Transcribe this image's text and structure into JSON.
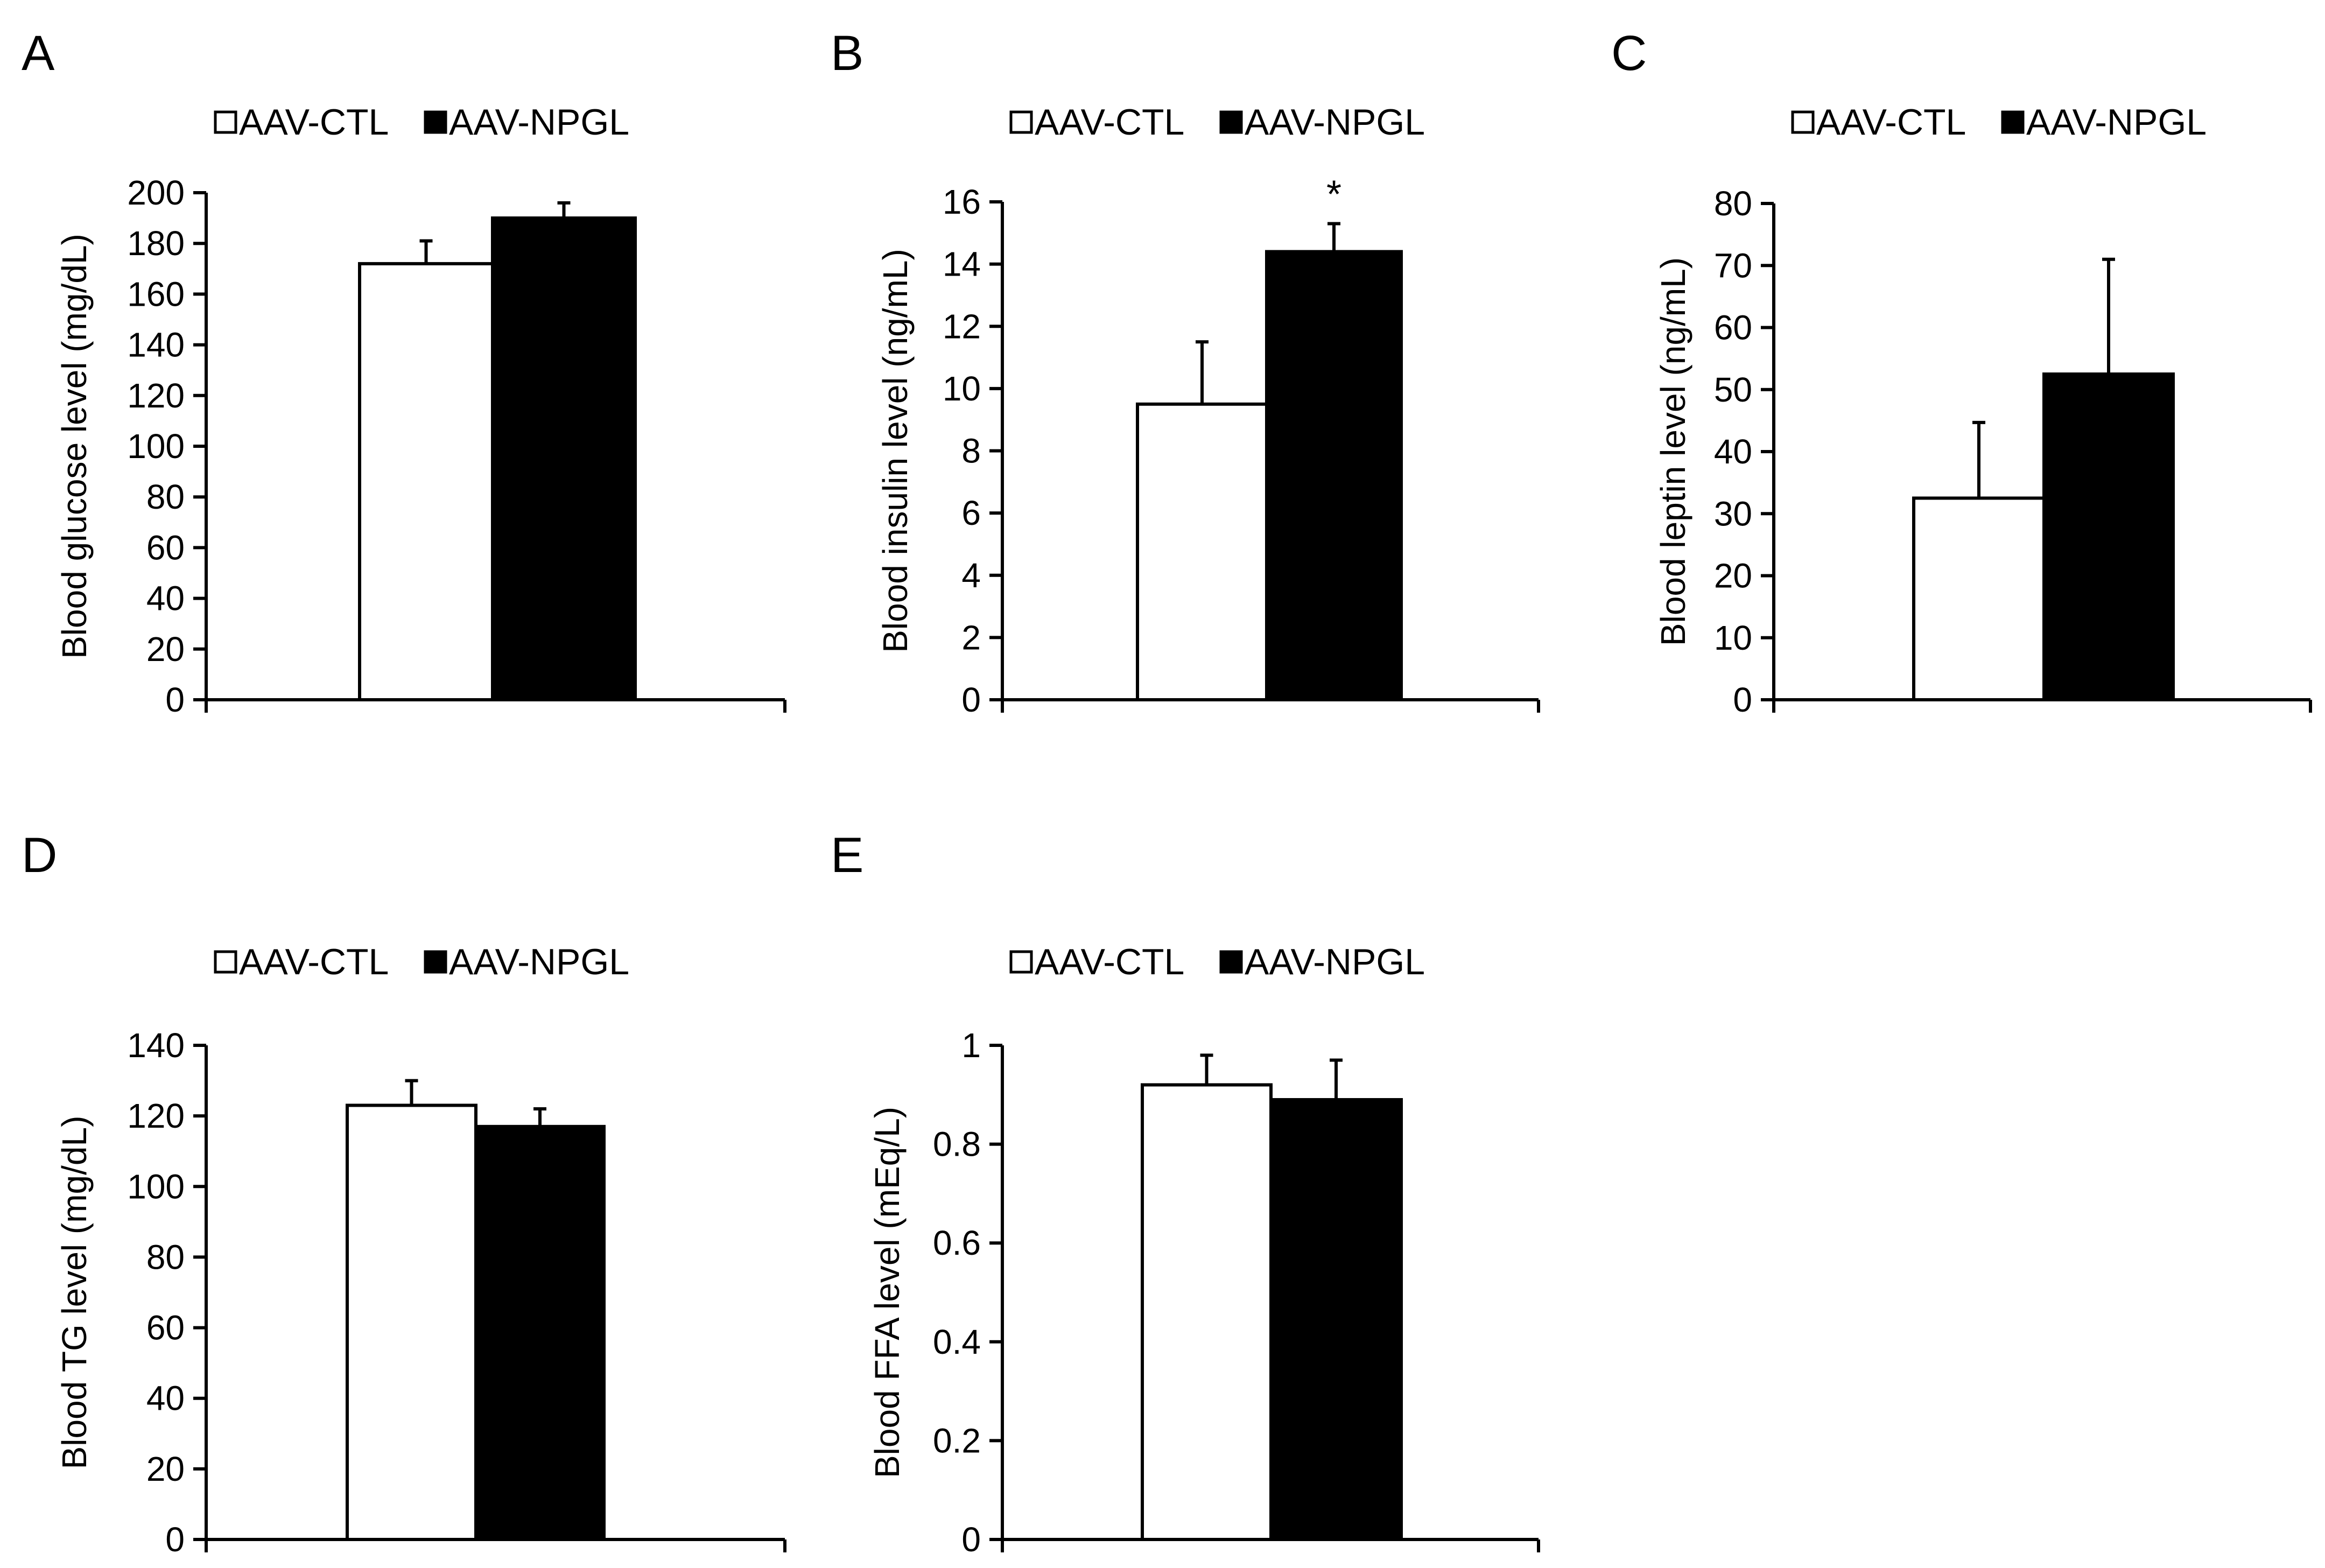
{
  "legend": {
    "series": [
      "AAV-CTL",
      "AAV-NPGL"
    ]
  },
  "colors": {
    "ctl": "#ffffff",
    "npgl": "#000000",
    "axis": "#000000"
  },
  "chart_data": [
    {
      "panel": "A",
      "type": "bar",
      "ylabel": "Blood glucose level (mg/dL)",
      "ylim": [
        0,
        200
      ],
      "yticks": [
        "0",
        "20",
        "40",
        "60",
        "80",
        "100",
        "120",
        "140",
        "160",
        "180",
        "200"
      ],
      "legend_position": "top",
      "series": [
        {
          "name": "AAV-CTL",
          "value": 172,
          "error": 9
        },
        {
          "name": "AAV-NPGL",
          "value": 190,
          "error": 6
        }
      ],
      "annotations": []
    },
    {
      "panel": "B",
      "type": "bar",
      "ylabel": "Blood insulin level (ng/mL)",
      "ylim": [
        0,
        16
      ],
      "yticks": [
        "0",
        "2",
        "4",
        "6",
        "8",
        "10",
        "12",
        "14",
        "16"
      ],
      "legend_position": "top",
      "series": [
        {
          "name": "AAV-CTL",
          "value": 9.5,
          "error": 2.0
        },
        {
          "name": "AAV-NPGL",
          "value": 14.4,
          "error": 0.9
        }
      ],
      "annotations": [
        {
          "text": "*",
          "series": "AAV-NPGL"
        }
      ]
    },
    {
      "panel": "C",
      "type": "bar",
      "ylabel": "Blood leptin level (ng/mL)",
      "ylim": [
        0,
        80
      ],
      "yticks": [
        "0",
        "10",
        "20",
        "30",
        "40",
        "50",
        "60",
        "70",
        "80"
      ],
      "legend_position": "top",
      "series": [
        {
          "name": "AAV-CTL",
          "value": 32.5,
          "error": 12.2
        },
        {
          "name": "AAV-NPGL",
          "value": 52.5,
          "error": 18.5
        }
      ],
      "annotations": []
    },
    {
      "panel": "D",
      "type": "bar",
      "ylabel": "Blood TG level (mg/dL)",
      "ylim": [
        0,
        140
      ],
      "yticks": [
        "0",
        "20",
        "40",
        "60",
        "80",
        "100",
        "120",
        "140"
      ],
      "legend_position": "top",
      "series": [
        {
          "name": "AAV-CTL",
          "value": 123,
          "error": 7
        },
        {
          "name": "AAV-NPGL",
          "value": 117,
          "error": 5
        }
      ],
      "annotations": []
    },
    {
      "panel": "E",
      "type": "bar",
      "ylabel": "Blood FFA level (mEq/L)",
      "ylim": [
        0,
        1
      ],
      "yticks": [
        "0",
        "0.2",
        "0.4",
        "0.6",
        "0.8",
        "1"
      ],
      "legend_position": "top",
      "series": [
        {
          "name": "AAV-CTL",
          "value": 0.92,
          "error": 0.06
        },
        {
          "name": "AAV-NPGL",
          "value": 0.89,
          "error": 0.08
        }
      ],
      "annotations": []
    }
  ]
}
